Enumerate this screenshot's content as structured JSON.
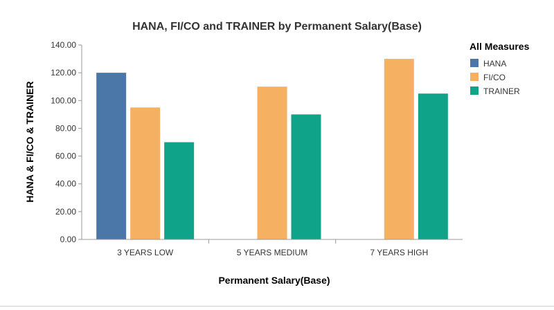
{
  "chart_data": {
    "type": "bar",
    "title": "HANA, FI/CO and TRAINER by Permanent Salary(Base)",
    "xlabel": "Permanent Salary(Base)",
    "ylabel": "HANA & FI/CO & TRAINER",
    "ylim": [
      0,
      140
    ],
    "yticks": [
      "0.00",
      "20.00",
      "40.00",
      "60.00",
      "80.00",
      "100.00",
      "120.00",
      "140.00"
    ],
    "categories": [
      "3 YEARS LOW",
      "5 YEARS MEDIUM",
      "7 YEARS HIGH"
    ],
    "series": [
      {
        "name": "HANA",
        "color": "#4a77a8",
        "values": [
          120,
          null,
          null
        ]
      },
      {
        "name": "FI/CO",
        "color": "#f5b062",
        "values": [
          95,
          110,
          130
        ]
      },
      {
        "name": "TRAINER",
        "color": "#0fa38a",
        "values": [
          70,
          90,
          105
        ]
      }
    ],
    "legend": {
      "title": "All Measures",
      "position": "top-right"
    },
    "grid": false
  }
}
